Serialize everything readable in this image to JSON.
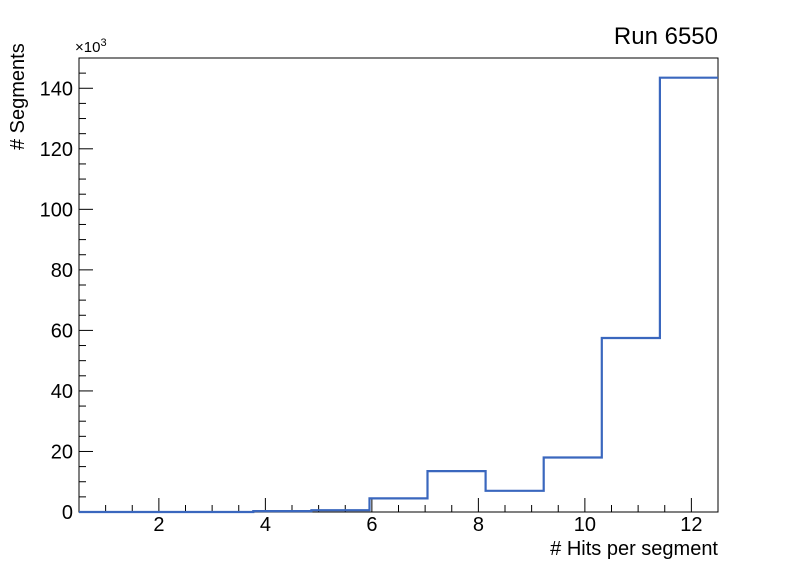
{
  "chart_data": {
    "type": "step-histogram",
    "title": "Run 6550",
    "xlabel": "# Hits per segment",
    "ylabel": "# Segments",
    "y_axis_multiplier_base": "×10",
    "y_axis_multiplier_exponent": "3",
    "x_range": [
      0.5,
      12.5
    ],
    "y_range": [
      0,
      150000
    ],
    "grid": false,
    "legend": null,
    "bin_edges": [
      0.5,
      1.591,
      2.682,
      3.773,
      4.864,
      5.955,
      7.045,
      8.136,
      9.227,
      10.318,
      11.409,
      12.5
    ],
    "counts": [
      0,
      0,
      0,
      300,
      600,
      4500,
      13500,
      7000,
      18000,
      57500,
      143500
    ],
    "x_major_ticks": [
      2,
      4,
      6,
      8,
      10,
      12
    ],
    "x_major_tick_labels": [
      "2",
      "4",
      "6",
      "8",
      "10",
      "12"
    ],
    "x_minor_tick_step": 0.5,
    "y_major_ticks": [
      0,
      20000,
      40000,
      60000,
      80000,
      100000,
      120000,
      140000
    ],
    "y_major_tick_labels": [
      "0",
      "20",
      "40",
      "60",
      "80",
      "100",
      "120",
      "140"
    ],
    "y_minor_tick_step": 5000,
    "line_color": "#3a67be",
    "axis_color": "#000000",
    "background_color": "#ffffff"
  }
}
